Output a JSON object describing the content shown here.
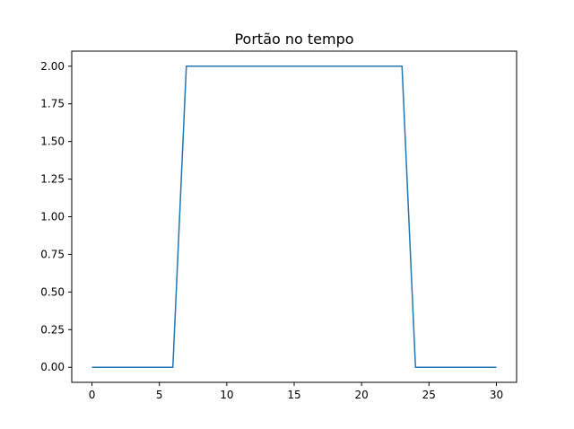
{
  "chart_data": {
    "type": "line",
    "title": "Portão no tempo",
    "xlabel": "",
    "ylabel": "",
    "xlim": [
      -1.5,
      31.5
    ],
    "ylim": [
      -0.1,
      2.1
    ],
    "xticks": [
      0,
      5,
      10,
      15,
      20,
      25,
      30
    ],
    "xtick_labels": [
      "0",
      "5",
      "10",
      "15",
      "20",
      "25",
      "30"
    ],
    "yticks": [
      0,
      0.25,
      0.5,
      0.75,
      1.0,
      1.25,
      1.5,
      1.75,
      2.0
    ],
    "ytick_labels": [
      "0.00",
      "0.25",
      "0.50",
      "0.75",
      "1.00",
      "1.25",
      "1.50",
      "1.75",
      "2.00"
    ],
    "grid": false,
    "series": [
      {
        "color": "#1f77b4",
        "x": [
          0,
          1,
          2,
          3,
          4,
          5,
          6,
          7,
          8,
          9,
          10,
          11,
          12,
          13,
          14,
          15,
          16,
          17,
          18,
          19,
          20,
          21,
          22,
          23,
          24,
          25,
          26,
          27,
          28,
          29,
          30
        ],
        "y": [
          0,
          0,
          0,
          0,
          0,
          0,
          0,
          2,
          2,
          2,
          2,
          2,
          2,
          2,
          2,
          2,
          2,
          2,
          2,
          2,
          2,
          2,
          2,
          2,
          0,
          0,
          0,
          0,
          0,
          0,
          0
        ]
      }
    ]
  }
}
